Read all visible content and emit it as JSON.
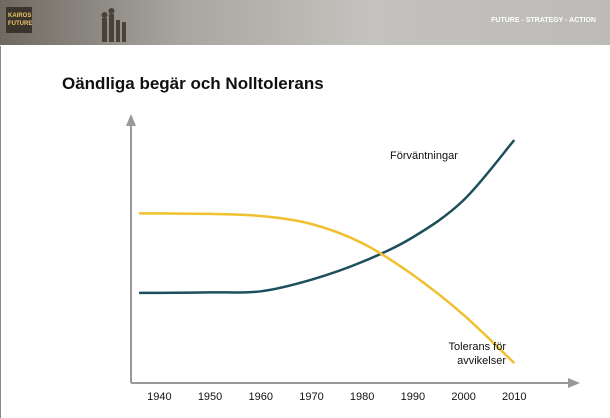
{
  "header": {
    "logo": [
      "KAIROS",
      "FUTURE"
    ],
    "tagline": "FUTURE - STRATEGY - ACTION"
  },
  "chart_data": {
    "type": "line",
    "title": "Oändliga begär och Nolltolerans",
    "x": [
      1936,
      1940,
      1950,
      1960,
      1970,
      1980,
      1990,
      2000,
      2010
    ],
    "series": [
      {
        "name": "Förväntningar",
        "color": "#1d4e5c",
        "values": [
          34,
          34,
          34.2,
          34.6,
          39,
          45.7,
          55,
          69,
          91.7
        ]
      },
      {
        "name": "Tolerans för avvikelser",
        "color": "#f0c02e",
        "values": [
          64,
          64,
          63.8,
          63,
          60,
          52.8,
          40.8,
          25.7,
          7.5
        ]
      }
    ],
    "xlim": [
      1935,
      2020
    ],
    "xticks": [
      1940,
      1950,
      1960,
      1970,
      1980,
      1990,
      2000,
      2010
    ],
    "ylim": [
      0,
      100
    ]
  }
}
